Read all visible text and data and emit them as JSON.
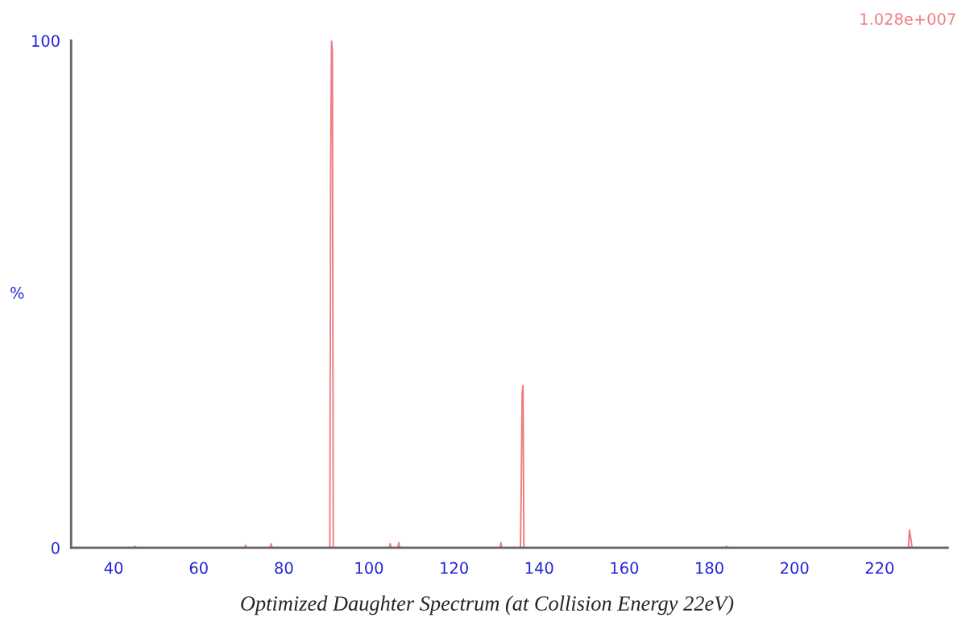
{
  "chart_data": {
    "type": "line",
    "title": "Optimized Daughter Spectrum (at Collision Energy 22eV)",
    "ylabel": "%",
    "annotations": [
      "1.028e+007"
    ],
    "x": [
      30,
      44.8,
      45,
      45.2,
      70.8,
      71,
      71.2,
      76.8,
      77,
      77.2,
      90.8,
      91,
      91.2,
      91.4,
      91.6,
      104.8,
      105,
      105.2,
      106.8,
      107,
      107.2,
      130.8,
      131,
      131.2,
      135.6,
      135.8,
      136,
      136.2,
      136.4,
      183.8,
      184,
      184.2,
      226.8,
      227,
      227.2,
      227.4,
      227.6,
      236
    ],
    "series": [
      {
        "color": "#f07c80",
        "values": [
          0,
          0,
          0.3,
          0,
          0,
          0.5,
          0,
          0,
          0.8,
          0,
          0,
          75,
          100,
          98,
          0,
          0,
          0.8,
          0,
          0,
          1,
          0,
          0,
          1,
          0,
          0,
          13,
          30.5,
          32,
          0,
          0,
          0.3,
          0,
          0,
          3.5,
          2.5,
          1.5,
          0,
          0
        ]
      }
    ],
    "xlim": [
      30,
      236
    ],
    "xticks": [
      40,
      60,
      80,
      100,
      120,
      140,
      160,
      180,
      200,
      220
    ],
    "ylim": [
      0,
      100
    ],
    "yticks": [
      0,
      100
    ],
    "grid": false,
    "legend": false,
    "marker": "none",
    "line_style": "solid"
  }
}
